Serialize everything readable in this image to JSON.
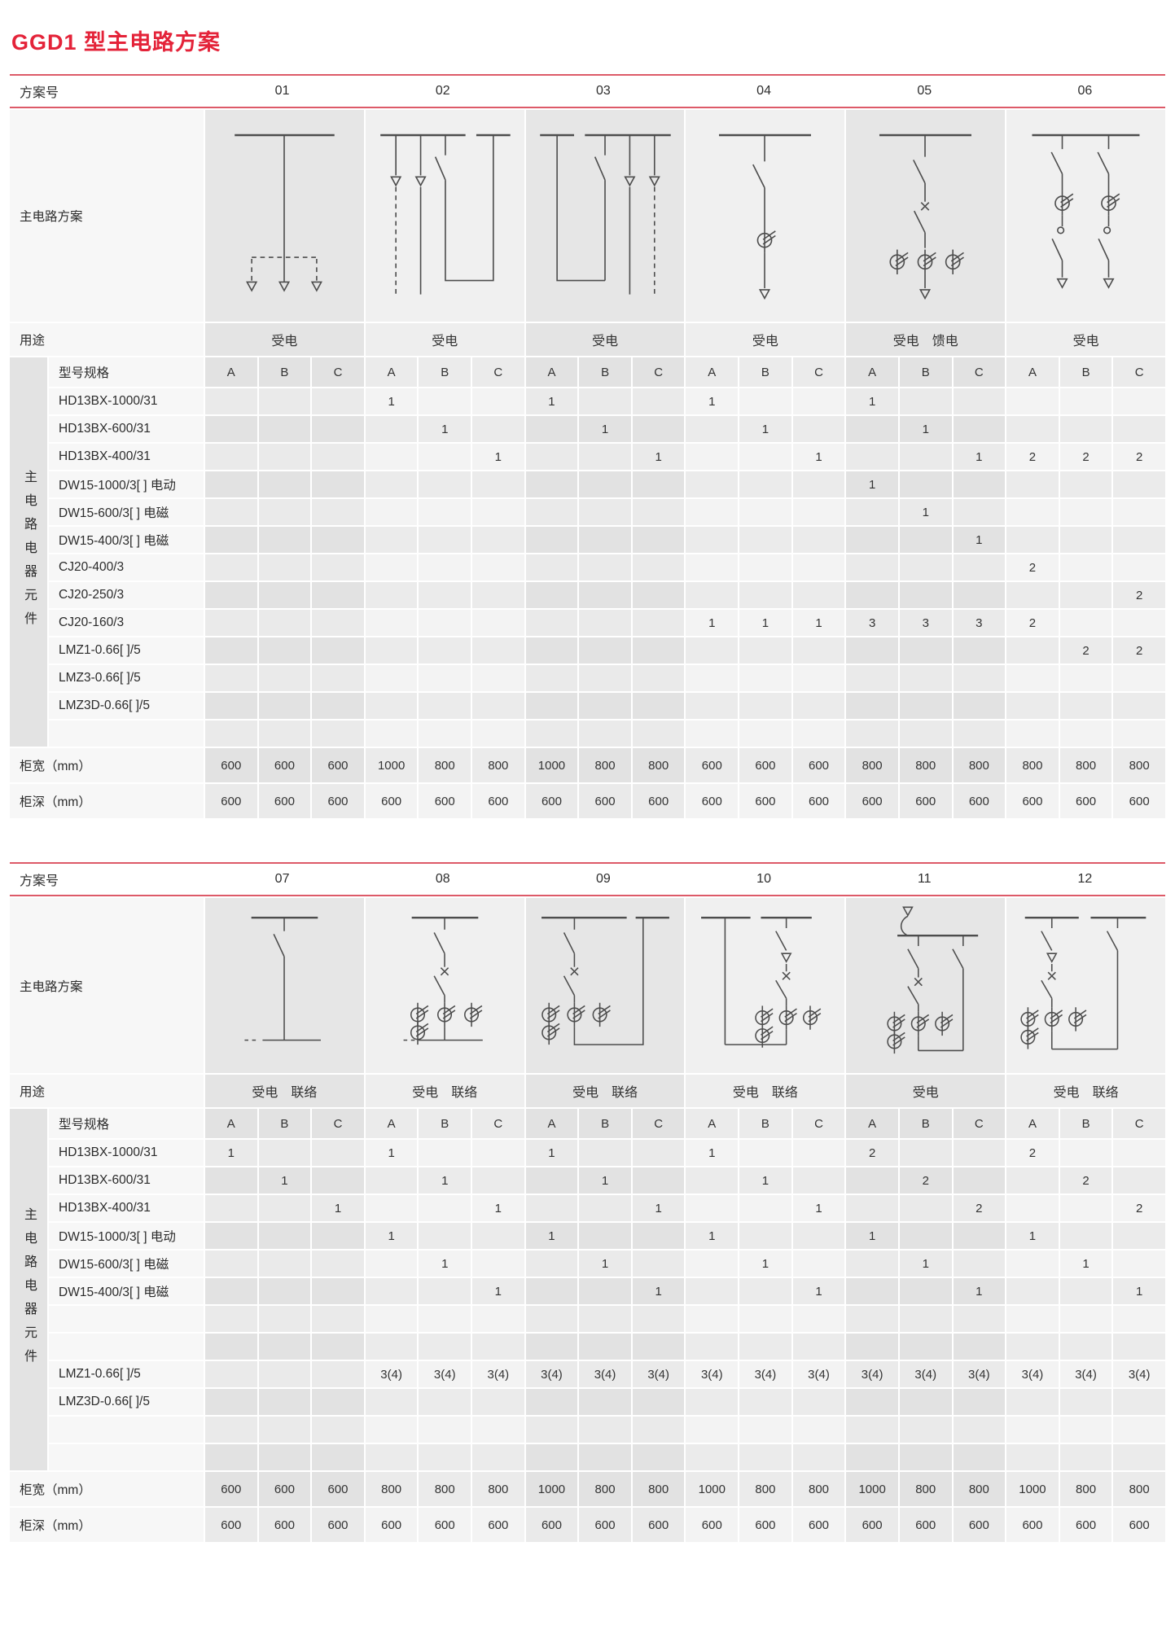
{
  "page": {
    "title": "GGD1 型主电路方案"
  },
  "colors": {
    "title_red": "#e42339",
    "rule_red": "#dd5a68"
  },
  "labels": {
    "scheme_no": "方案号",
    "main_circuit": "主电路方案",
    "usage": "用途",
    "component_group": "主电路电器元件",
    "model_spec": "型号规格",
    "cabinet_width": "柜宽（mm）",
    "cabinet_depth": "柜深（mm）",
    "phase_cols": [
      "A",
      "B",
      "C"
    ]
  },
  "tables": [
    {
      "schemes": [
        "01",
        "02",
        "03",
        "04",
        "05",
        "06"
      ],
      "usages": [
        "受电",
        "受电",
        "受电",
        "受电",
        "受电　馈电",
        "受电"
      ],
      "rows": [
        {
          "label": "HD13BX-1000/31",
          "cells": [
            "",
            "",
            "",
            "1",
            "",
            "",
            "1",
            "",
            "",
            "1",
            "",
            "",
            "1",
            "",
            "",
            "",
            "",
            ""
          ]
        },
        {
          "label": "HD13BX-600/31",
          "cells": [
            "",
            "",
            "",
            "",
            "1",
            "",
            "",
            "1",
            "",
            "",
            "1",
            "",
            "",
            "1",
            "",
            "",
            "",
            ""
          ]
        },
        {
          "label": "HD13BX-400/31",
          "cells": [
            "",
            "",
            "",
            "",
            "",
            "1",
            "",
            "",
            "1",
            "",
            "",
            "1",
            "",
            "",
            "1",
            "2",
            "2",
            "2"
          ]
        },
        {
          "label": "DW15-1000/3[ ] 电动",
          "cells": [
            "",
            "",
            "",
            "",
            "",
            "",
            "",
            "",
            "",
            "",
            "",
            "",
            "1",
            "",
            "",
            "",
            "",
            ""
          ]
        },
        {
          "label": "DW15-600/3[ ] 电磁",
          "cells": [
            "",
            "",
            "",
            "",
            "",
            "",
            "",
            "",
            "",
            "",
            "",
            "",
            "",
            "1",
            "",
            "",
            "",
            ""
          ]
        },
        {
          "label": "DW15-400/3[ ] 电磁",
          "cells": [
            "",
            "",
            "",
            "",
            "",
            "",
            "",
            "",
            "",
            "",
            "",
            "",
            "",
            "",
            "1",
            "",
            "",
            ""
          ]
        },
        {
          "label": "CJ20-400/3",
          "cells": [
            "",
            "",
            "",
            "",
            "",
            "",
            "",
            "",
            "",
            "",
            "",
            "",
            "",
            "",
            "",
            "2",
            "",
            ""
          ]
        },
        {
          "label": "CJ20-250/3",
          "cells": [
            "",
            "",
            "",
            "",
            "",
            "",
            "",
            "",
            "",
            "",
            "",
            "",
            "",
            "",
            "",
            "",
            "",
            "2"
          ]
        },
        {
          "label": "CJ20-160/3",
          "cells": [
            "",
            "",
            "",
            "",
            "",
            "",
            "",
            "",
            "",
            "1",
            "1",
            "1",
            "3",
            "3",
            "3",
            "2",
            "",
            ""
          ]
        },
        {
          "label": "LMZ1-0.66[ ]/5",
          "cells": [
            "",
            "",
            "",
            "",
            "",
            "",
            "",
            "",
            "",
            "",
            "",
            "",
            "",
            "",
            "",
            "",
            "2",
            "2"
          ]
        },
        {
          "label": "LMZ3-0.66[ ]/5",
          "cells": [
            "",
            "",
            "",
            "",
            "",
            "",
            "",
            "",
            "",
            "",
            "",
            "",
            "",
            "",
            "",
            "",
            "",
            ""
          ]
        },
        {
          "label": "LMZ3D-0.66[ ]/5",
          "cells": [
            "",
            "",
            "",
            "",
            "",
            "",
            "",
            "",
            "",
            "",
            "",
            "",
            "",
            "",
            "",
            "",
            "",
            ""
          ]
        },
        {
          "label": "",
          "cells": [
            "",
            "",
            "",
            "",
            "",
            "",
            "",
            "",
            "",
            "",
            "",
            "",
            "",
            "",
            "",
            "",
            "",
            ""
          ]
        }
      ],
      "cabinet_width": [
        "600",
        "600",
        "600",
        "1000",
        "800",
        "800",
        "1000",
        "800",
        "800",
        "600",
        "600",
        "600",
        "800",
        "800",
        "800",
        "800",
        "800",
        "800"
      ],
      "cabinet_depth": [
        "600",
        "600",
        "600",
        "600",
        "600",
        "600",
        "600",
        "600",
        "600",
        "600",
        "600",
        "600",
        "600",
        "600",
        "600",
        "600",
        "600",
        "600"
      ]
    },
    {
      "schemes": [
        "07",
        "08",
        "09",
        "10",
        "11",
        "12"
      ],
      "usages": [
        "受电　联络",
        "受电　联络",
        "受电　联络",
        "受电　联络",
        "受电",
        "受电　联络"
      ],
      "rows": [
        {
          "label": "HD13BX-1000/31",
          "cells": [
            "1",
            "",
            "",
            "1",
            "",
            "",
            "1",
            "",
            "",
            "1",
            "",
            "",
            "2",
            "",
            "",
            "2",
            "",
            ""
          ]
        },
        {
          "label": "HD13BX-600/31",
          "cells": [
            "",
            "1",
            "",
            "",
            "1",
            "",
            "",
            "1",
            "",
            "",
            "1",
            "",
            "",
            "2",
            "",
            "",
            "2",
            ""
          ]
        },
        {
          "label": "HD13BX-400/31",
          "cells": [
            "",
            "",
            "1",
            "",
            "",
            "1",
            "",
            "",
            "1",
            "",
            "",
            "1",
            "",
            "",
            "2",
            "",
            "",
            "2"
          ]
        },
        {
          "label": "DW15-1000/3[ ] 电动",
          "cells": [
            "",
            "",
            "",
            "1",
            "",
            "",
            "1",
            "",
            "",
            "1",
            "",
            "",
            "1",
            "",
            "",
            "1",
            "",
            ""
          ]
        },
        {
          "label": "DW15-600/3[ ] 电磁",
          "cells": [
            "",
            "",
            "",
            "",
            "1",
            "",
            "",
            "1",
            "",
            "",
            "1",
            "",
            "",
            "1",
            "",
            "",
            "1",
            ""
          ]
        },
        {
          "label": "DW15-400/3[ ] 电磁",
          "cells": [
            "",
            "",
            "",
            "",
            "",
            "1",
            "",
            "",
            "1",
            "",
            "",
            "1",
            "",
            "",
            "1",
            "",
            "",
            "1"
          ]
        },
        {
          "label": "",
          "cells": [
            "",
            "",
            "",
            "",
            "",
            "",
            "",
            "",
            "",
            "",
            "",
            "",
            "",
            "",
            "",
            "",
            "",
            ""
          ]
        },
        {
          "label": "",
          "cells": [
            "",
            "",
            "",
            "",
            "",
            "",
            "",
            "",
            "",
            "",
            "",
            "",
            "",
            "",
            "",
            "",
            "",
            ""
          ]
        },
        {
          "label": "LMZ1-0.66[ ]/5",
          "cells": [
            "",
            "",
            "",
            "3(4)",
            "3(4)",
            "3(4)",
            "3(4)",
            "3(4)",
            "3(4)",
            "3(4)",
            "3(4)",
            "3(4)",
            "3(4)",
            "3(4)",
            "3(4)",
            "3(4)",
            "3(4)",
            "3(4)"
          ]
        },
        {
          "label": "LMZ3D-0.66[ ]/5",
          "cells": [
            "",
            "",
            "",
            "",
            "",
            "",
            "",
            "",
            "",
            "",
            "",
            "",
            "",
            "",
            "",
            "",
            "",
            ""
          ]
        },
        {
          "label": "",
          "cells": [
            "",
            "",
            "",
            "",
            "",
            "",
            "",
            "",
            "",
            "",
            "",
            "",
            "",
            "",
            "",
            "",
            "",
            ""
          ]
        },
        {
          "label": "",
          "cells": [
            "",
            "",
            "",
            "",
            "",
            "",
            "",
            "",
            "",
            "",
            "",
            "",
            "",
            "",
            "",
            "",
            "",
            ""
          ]
        }
      ],
      "cabinet_width": [
        "600",
        "600",
        "600",
        "800",
        "800",
        "800",
        "1000",
        "800",
        "800",
        "1000",
        "800",
        "800",
        "1000",
        "800",
        "800",
        "1000",
        "800",
        "800"
      ],
      "cabinet_depth": [
        "600",
        "600",
        "600",
        "600",
        "600",
        "600",
        "600",
        "600",
        "600",
        "600",
        "600",
        "600",
        "600",
        "600",
        "600",
        "600",
        "600",
        "600"
      ]
    }
  ]
}
